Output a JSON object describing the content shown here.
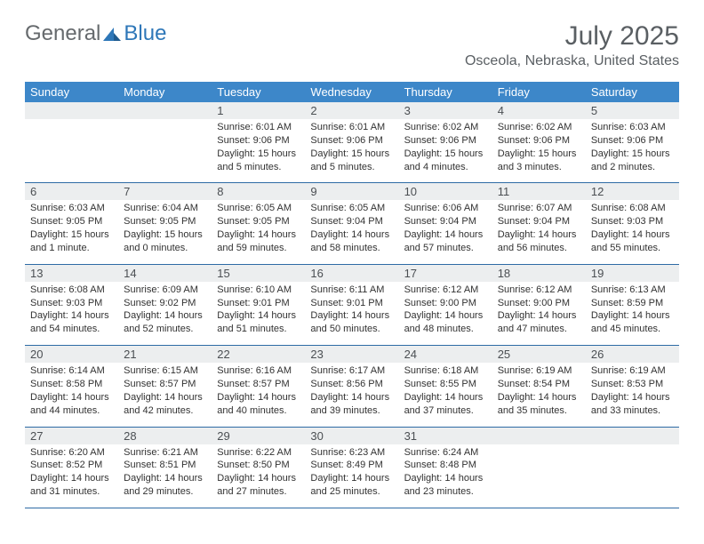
{
  "logo": {
    "textA": "General",
    "textB": "Blue"
  },
  "title": "July 2025",
  "location": "Osceola, Nebraska, United States",
  "colors": {
    "header_bg": "#3d87c9",
    "header_text": "#ffffff",
    "daynum_bg": "#eceeef",
    "text": "#323232",
    "title_text": "#5a5f63",
    "rule": "#2e6ba5",
    "logo_gray": "#666a6d",
    "logo_blue": "#2e77b8"
  },
  "day_headers": [
    "Sunday",
    "Monday",
    "Tuesday",
    "Wednesday",
    "Thursday",
    "Friday",
    "Saturday"
  ],
  "weeks": [
    [
      {
        "num": "",
        "sunrise": "",
        "sunset": "",
        "daylight": ""
      },
      {
        "num": "",
        "sunrise": "",
        "sunset": "",
        "daylight": ""
      },
      {
        "num": "1",
        "sunrise": "Sunrise: 6:01 AM",
        "sunset": "Sunset: 9:06 PM",
        "daylight": "Daylight: 15 hours and 5 minutes."
      },
      {
        "num": "2",
        "sunrise": "Sunrise: 6:01 AM",
        "sunset": "Sunset: 9:06 PM",
        "daylight": "Daylight: 15 hours and 5 minutes."
      },
      {
        "num": "3",
        "sunrise": "Sunrise: 6:02 AM",
        "sunset": "Sunset: 9:06 PM",
        "daylight": "Daylight: 15 hours and 4 minutes."
      },
      {
        "num": "4",
        "sunrise": "Sunrise: 6:02 AM",
        "sunset": "Sunset: 9:06 PM",
        "daylight": "Daylight: 15 hours and 3 minutes."
      },
      {
        "num": "5",
        "sunrise": "Sunrise: 6:03 AM",
        "sunset": "Sunset: 9:06 PM",
        "daylight": "Daylight: 15 hours and 2 minutes."
      }
    ],
    [
      {
        "num": "6",
        "sunrise": "Sunrise: 6:03 AM",
        "sunset": "Sunset: 9:05 PM",
        "daylight": "Daylight: 15 hours and 1 minute."
      },
      {
        "num": "7",
        "sunrise": "Sunrise: 6:04 AM",
        "sunset": "Sunset: 9:05 PM",
        "daylight": "Daylight: 15 hours and 0 minutes."
      },
      {
        "num": "8",
        "sunrise": "Sunrise: 6:05 AM",
        "sunset": "Sunset: 9:05 PM",
        "daylight": "Daylight: 14 hours and 59 minutes."
      },
      {
        "num": "9",
        "sunrise": "Sunrise: 6:05 AM",
        "sunset": "Sunset: 9:04 PM",
        "daylight": "Daylight: 14 hours and 58 minutes."
      },
      {
        "num": "10",
        "sunrise": "Sunrise: 6:06 AM",
        "sunset": "Sunset: 9:04 PM",
        "daylight": "Daylight: 14 hours and 57 minutes."
      },
      {
        "num": "11",
        "sunrise": "Sunrise: 6:07 AM",
        "sunset": "Sunset: 9:04 PM",
        "daylight": "Daylight: 14 hours and 56 minutes."
      },
      {
        "num": "12",
        "sunrise": "Sunrise: 6:08 AM",
        "sunset": "Sunset: 9:03 PM",
        "daylight": "Daylight: 14 hours and 55 minutes."
      }
    ],
    [
      {
        "num": "13",
        "sunrise": "Sunrise: 6:08 AM",
        "sunset": "Sunset: 9:03 PM",
        "daylight": "Daylight: 14 hours and 54 minutes."
      },
      {
        "num": "14",
        "sunrise": "Sunrise: 6:09 AM",
        "sunset": "Sunset: 9:02 PM",
        "daylight": "Daylight: 14 hours and 52 minutes."
      },
      {
        "num": "15",
        "sunrise": "Sunrise: 6:10 AM",
        "sunset": "Sunset: 9:01 PM",
        "daylight": "Daylight: 14 hours and 51 minutes."
      },
      {
        "num": "16",
        "sunrise": "Sunrise: 6:11 AM",
        "sunset": "Sunset: 9:01 PM",
        "daylight": "Daylight: 14 hours and 50 minutes."
      },
      {
        "num": "17",
        "sunrise": "Sunrise: 6:12 AM",
        "sunset": "Sunset: 9:00 PM",
        "daylight": "Daylight: 14 hours and 48 minutes."
      },
      {
        "num": "18",
        "sunrise": "Sunrise: 6:12 AM",
        "sunset": "Sunset: 9:00 PM",
        "daylight": "Daylight: 14 hours and 47 minutes."
      },
      {
        "num": "19",
        "sunrise": "Sunrise: 6:13 AM",
        "sunset": "Sunset: 8:59 PM",
        "daylight": "Daylight: 14 hours and 45 minutes."
      }
    ],
    [
      {
        "num": "20",
        "sunrise": "Sunrise: 6:14 AM",
        "sunset": "Sunset: 8:58 PM",
        "daylight": "Daylight: 14 hours and 44 minutes."
      },
      {
        "num": "21",
        "sunrise": "Sunrise: 6:15 AM",
        "sunset": "Sunset: 8:57 PM",
        "daylight": "Daylight: 14 hours and 42 minutes."
      },
      {
        "num": "22",
        "sunrise": "Sunrise: 6:16 AM",
        "sunset": "Sunset: 8:57 PM",
        "daylight": "Daylight: 14 hours and 40 minutes."
      },
      {
        "num": "23",
        "sunrise": "Sunrise: 6:17 AM",
        "sunset": "Sunset: 8:56 PM",
        "daylight": "Daylight: 14 hours and 39 minutes."
      },
      {
        "num": "24",
        "sunrise": "Sunrise: 6:18 AM",
        "sunset": "Sunset: 8:55 PM",
        "daylight": "Daylight: 14 hours and 37 minutes."
      },
      {
        "num": "25",
        "sunrise": "Sunrise: 6:19 AM",
        "sunset": "Sunset: 8:54 PM",
        "daylight": "Daylight: 14 hours and 35 minutes."
      },
      {
        "num": "26",
        "sunrise": "Sunrise: 6:19 AM",
        "sunset": "Sunset: 8:53 PM",
        "daylight": "Daylight: 14 hours and 33 minutes."
      }
    ],
    [
      {
        "num": "27",
        "sunrise": "Sunrise: 6:20 AM",
        "sunset": "Sunset: 8:52 PM",
        "daylight": "Daylight: 14 hours and 31 minutes."
      },
      {
        "num": "28",
        "sunrise": "Sunrise: 6:21 AM",
        "sunset": "Sunset: 8:51 PM",
        "daylight": "Daylight: 14 hours and 29 minutes."
      },
      {
        "num": "29",
        "sunrise": "Sunrise: 6:22 AM",
        "sunset": "Sunset: 8:50 PM",
        "daylight": "Daylight: 14 hours and 27 minutes."
      },
      {
        "num": "30",
        "sunrise": "Sunrise: 6:23 AM",
        "sunset": "Sunset: 8:49 PM",
        "daylight": "Daylight: 14 hours and 25 minutes."
      },
      {
        "num": "31",
        "sunrise": "Sunrise: 6:24 AM",
        "sunset": "Sunset: 8:48 PM",
        "daylight": "Daylight: 14 hours and 23 minutes."
      },
      {
        "num": "",
        "sunrise": "",
        "sunset": "",
        "daylight": ""
      },
      {
        "num": "",
        "sunrise": "",
        "sunset": "",
        "daylight": ""
      }
    ]
  ]
}
